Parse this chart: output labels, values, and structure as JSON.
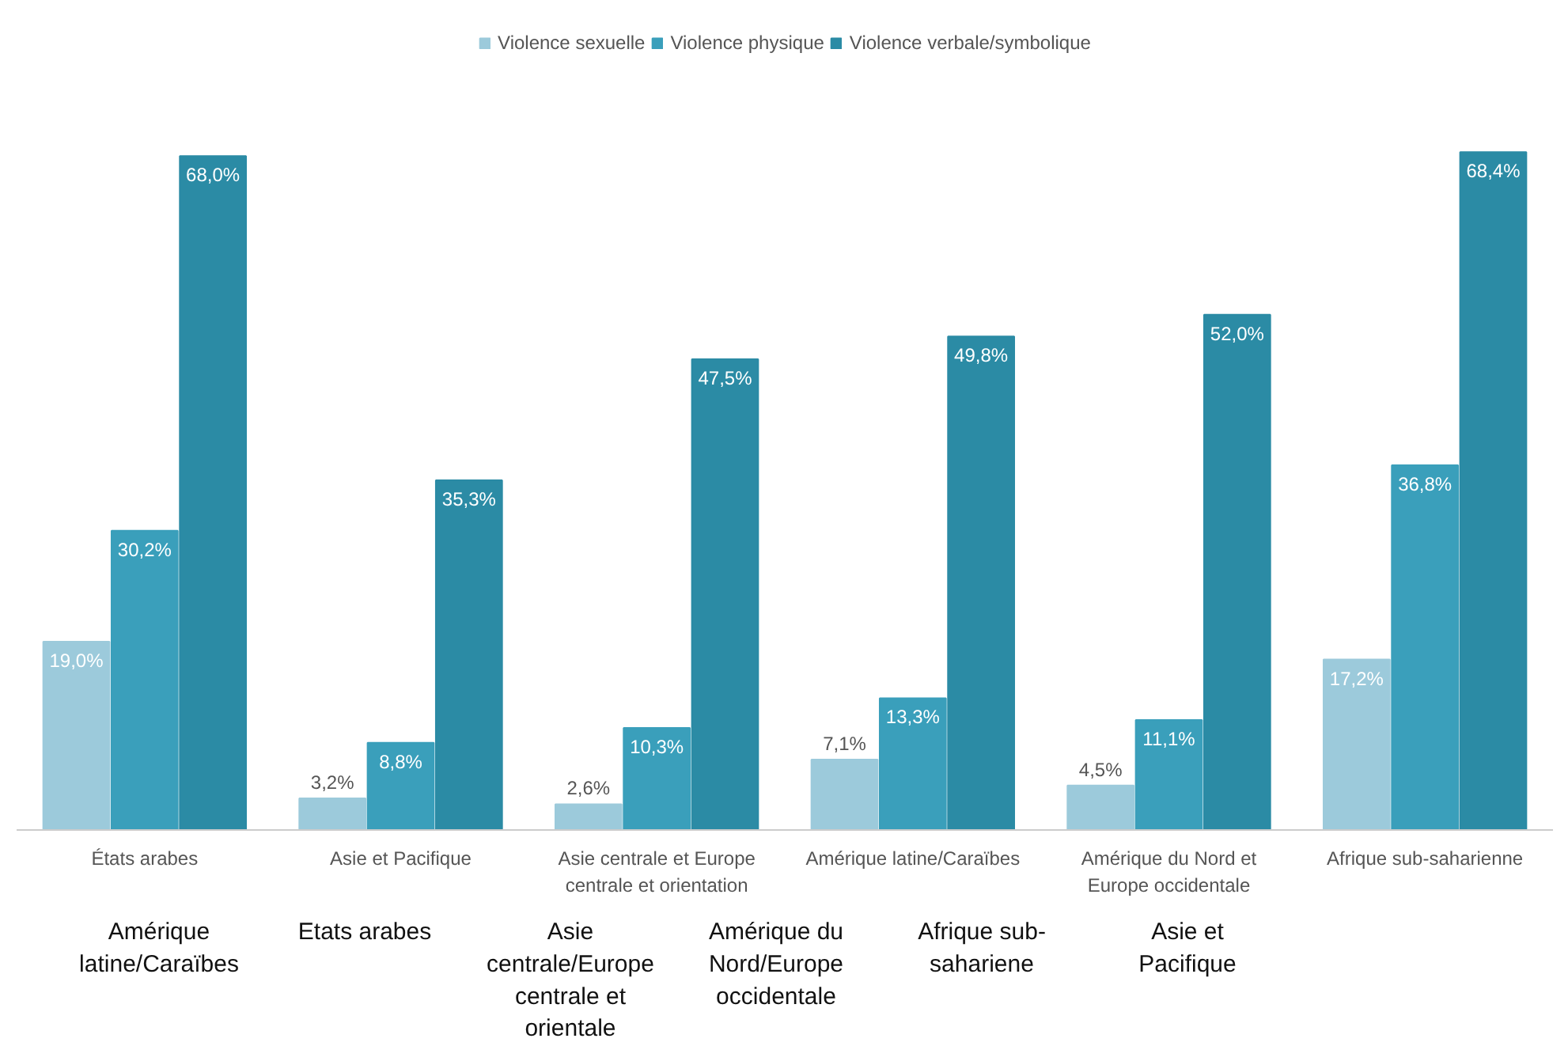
{
  "chart_data": {
    "type": "bar",
    "categories": [
      "États arabes",
      "Asie et Pacifique",
      "Asie centrale et Europe centrale et orientation",
      "Amérique latine/Caraïbes",
      "Amérique du Nord et Europe occidentale",
      "Afrique sub-saharienne"
    ],
    "series": [
      {
        "name": "Violence sexuelle",
        "color": "#9ccadb",
        "values": [
          19.0,
          3.2,
          2.6,
          7.1,
          4.5,
          17.2
        ],
        "value_labels": [
          "19,0%",
          "3,2%",
          "2,6%",
          "7,1%",
          "4,5%",
          "17,2%"
        ]
      },
      {
        "name": "Violence physique",
        "color": "#3a9fbb",
        "values": [
          30.2,
          8.8,
          10.3,
          13.3,
          11.1,
          36.8
        ],
        "value_labels": [
          "30,2%",
          "8,8%",
          "10,3%",
          "13,3%",
          "11,1%",
          "36,8%"
        ]
      },
      {
        "name": "Violence verbale/symbolique",
        "color": "#2b8ba5",
        "values": [
          68.0,
          35.3,
          47.5,
          49.8,
          52.0,
          68.4
        ],
        "value_labels": [
          "68,0%",
          "35,3%",
          "47,5%",
          "49,8%",
          "52,0%",
          "68,4%"
        ]
      }
    ],
    "legend": "top",
    "tick_labels": "x",
    "annotations": [
      "Amérique latine/Caraïbes",
      "Etats arabes",
      "Asie centrale/Europe centrale et orientale",
      "Amérique du Nord/Europe occidentale",
      "Afrique sub-sahariene",
      "Asie et Pacifique"
    ]
  }
}
